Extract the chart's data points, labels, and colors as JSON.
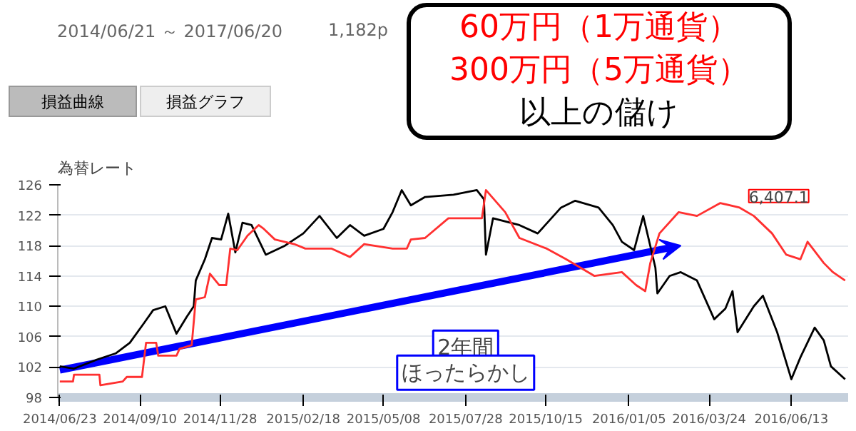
{
  "chart_data": {
    "type": "line",
    "ylabel": "為替レート",
    "xlim": [
      "2014-06-21",
      "2016-08-08"
    ],
    "xticks": [
      {
        "value": "2014-06-23",
        "label": "2014/06/23"
      },
      {
        "value": "2014-09-10",
        "label": "2014/09/10"
      },
      {
        "value": "2014-11-28",
        "label": "2014/11/28"
      },
      {
        "value": "2015-02-18",
        "label": "2015/02/18"
      },
      {
        "value": "2015-05-08",
        "label": "2015/05/08"
      },
      {
        "value": "2015-07-28",
        "label": "2015/07/28"
      },
      {
        "value": "2015-10-15",
        "label": "2015/10/15"
      },
      {
        "value": "2016-01-05",
        "label": "2016/01/05"
      },
      {
        "value": "2016-03-24",
        "label": "2016/03/24"
      },
      {
        "value": "2016-06-13",
        "label": "2016/06/13"
      }
    ],
    "ylim": [
      98,
      126
    ],
    "yticks": [
      98,
      102,
      106,
      110,
      114,
      118,
      122,
      126
    ],
    "grid": "y",
    "series": [
      {
        "color": "#000000",
        "x": [
          "2014-06-23",
          "2014-07-07",
          "2014-07-30",
          "2014-08-17",
          "2014-08-31",
          "2014-09-14",
          "2014-09-23",
          "2014-10-05",
          "2014-10-16",
          "2014-10-26",
          "2014-11-02",
          "2014-11-04",
          "2014-11-13",
          "2014-11-20",
          "2014-11-29",
          "2014-12-06",
          "2014-12-13",
          "2014-12-20",
          "2014-12-29",
          "2015-01-12",
          "2015-01-31",
          "2015-02-18",
          "2015-03-06",
          "2015-03-23",
          "2015-04-05",
          "2015-04-19",
          "2015-05-08",
          "2015-05-17",
          "2015-05-26",
          "2015-06-04",
          "2015-06-18",
          "2015-07-16",
          "2015-08-08",
          "2015-08-15",
          "2015-08-17",
          "2015-08-24",
          "2015-09-19",
          "2015-10-07",
          "2015-10-30",
          "2015-11-13",
          "2015-12-06",
          "2015-12-20",
          "2015-12-29",
          "2016-01-10",
          "2016-01-19",
          "2016-01-31",
          "2016-02-02",
          "2016-02-14",
          "2016-02-25",
          "2016-03-12",
          "2016-03-29",
          "2016-04-09",
          "2016-04-16",
          "2016-04-21",
          "2016-05-07",
          "2016-05-16",
          "2016-05-30",
          "2016-06-13",
          "2016-06-22",
          "2016-07-06",
          "2016-07-15",
          "2016-07-22",
          "2016-08-05"
        ],
        "values": [
          102.1,
          101.8,
          103,
          103.8,
          105.2,
          107.8,
          109.5,
          110,
          106.4,
          108.6,
          110,
          113.4,
          116.2,
          119,
          118.8,
          122.2,
          117.1,
          121,
          120.7,
          116.8,
          118,
          119.6,
          121.9,
          119,
          120.7,
          119.3,
          120.2,
          122.4,
          125.3,
          123.3,
          124.4,
          124.7,
          125.3,
          124.1,
          116.8,
          121.6,
          120.7,
          119.6,
          123,
          123.9,
          123,
          120.7,
          118.5,
          117.4,
          121.9,
          115.1,
          111.7,
          114,
          114.5,
          113.4,
          108.3,
          109.7,
          112,
          106.6,
          110,
          111.4,
          106.6,
          100.4,
          103.3,
          107.2,
          105.5,
          102.1,
          100.4
        ]
      },
      {
        "color": "#ff3030",
        "x": [
          "2014-06-23",
          "2014-07-06",
          "2014-07-07",
          "2014-08-01",
          "2014-08-02",
          "2014-08-24",
          "2014-08-28",
          "2014-09-12",
          "2014-09-16",
          "2014-09-26",
          "2014-09-28",
          "2014-10-16",
          "2014-10-19",
          "2014-10-31",
          "2014-11-04",
          "2014-11-13",
          "2014-11-18",
          "2014-11-27",
          "2014-12-04",
          "2014-12-08",
          "2014-12-15",
          "2014-12-25",
          "2015-01-05",
          "2015-01-10",
          "2015-01-21",
          "2015-02-09",
          "2015-02-20",
          "2015-03-18",
          "2015-04-05",
          "2015-04-19",
          "2015-05-17",
          "2015-05-31",
          "2015-06-04",
          "2015-06-18",
          "2015-07-11",
          "2015-08-13",
          "2015-08-17",
          "2015-09-05",
          "2015-09-19",
          "2015-10-16",
          "2015-11-04",
          "2015-12-02",
          "2015-12-29",
          "2016-01-12",
          "2016-01-21",
          "2016-01-26",
          "2016-02-04",
          "2016-02-23",
          "2016-03-12",
          "2016-04-04",
          "2016-04-23",
          "2016-05-07",
          "2016-05-25",
          "2016-06-08",
          "2016-06-22",
          "2016-06-29",
          "2016-07-15",
          "2016-07-24",
          "2016-08-05"
        ],
        "values": [
          100.1,
          100.1,
          101,
          101,
          99.6,
          100.1,
          100.7,
          100.7,
          105.2,
          105.2,
          103.5,
          103.5,
          104.4,
          104.9,
          110.9,
          111.2,
          114.3,
          112.8,
          112.8,
          117.6,
          117.4,
          119.3,
          120.7,
          120.2,
          118.8,
          118.2,
          117.6,
          117.6,
          116.5,
          118.2,
          117.6,
          117.6,
          118.8,
          119,
          121.6,
          121.6,
          125.3,
          122.4,
          119,
          117.6,
          116.2,
          114,
          114.5,
          112.8,
          112,
          115.7,
          119.6,
          122.4,
          121.9,
          123.6,
          123,
          121.9,
          119.6,
          116.8,
          116.2,
          118.5,
          115.7,
          114.5,
          113.4
        ]
      }
    ],
    "annotations": [
      "2014/06/21 ～ 2017/06/20",
      "1,182p",
      "損益曲線",
      "損益グラフ",
      "60万円（1万通貨）",
      "300万円（5万通貨）",
      "以上の儲け",
      "2年間",
      "ほったらかし",
      {
        "text": "6,407.1",
        "x": "2016-04-18",
        "y": 123.3
      }
    ]
  }
}
